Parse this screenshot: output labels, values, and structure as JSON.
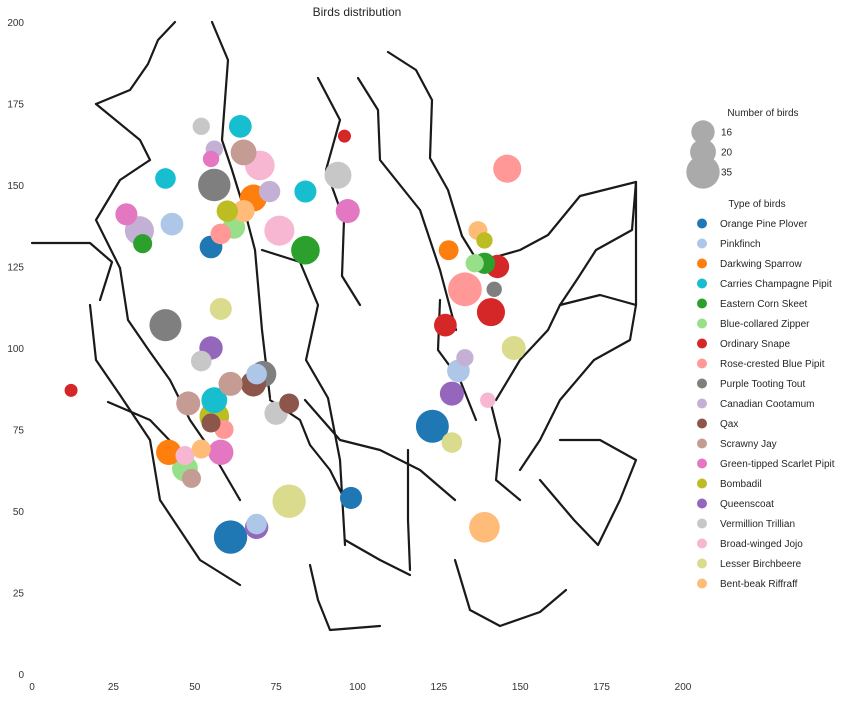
{
  "chart_data": {
    "type": "scatter",
    "title": "Birds distribution",
    "xlabel": "",
    "ylabel": "",
    "xlim": [
      0,
      200
    ],
    "ylim": [
      0,
      200
    ],
    "x_ticks": [
      0,
      25,
      50,
      75,
      100,
      125,
      150,
      175,
      200
    ],
    "y_ticks": [
      0,
      25,
      50,
      75,
      100,
      125,
      150,
      175,
      200
    ],
    "grid": false,
    "background": "map outline",
    "size_legend": {
      "title": "Number of birds",
      "entries": [
        16,
        20,
        35
      ],
      "color": "#aaaaaa"
    },
    "legend": {
      "title": "Type of birds",
      "placement": "right"
    },
    "series": [
      {
        "name": "Orange Pine Plover",
        "color": "#1f77b4",
        "points": [
          {
            "x": 61,
            "y": 42,
            "n": 35
          },
          {
            "x": 123,
            "y": 76,
            "n": 34
          },
          {
            "x": 55,
            "y": 131,
            "n": 15
          },
          {
            "x": 98,
            "y": 54,
            "n": 14
          }
        ]
      },
      {
        "name": "Pinkfinch",
        "color": "#aec7e8",
        "points": [
          {
            "x": 43,
            "y": 138,
            "n": 15
          },
          {
            "x": 131,
            "y": 93,
            "n": 15
          },
          {
            "x": 69,
            "y": 92,
            "n": 12
          },
          {
            "x": 69,
            "y": 46,
            "n": 12
          }
        ]
      },
      {
        "name": "Darkwing Sparrow",
        "color": "#ff7f0e",
        "points": [
          {
            "x": 68,
            "y": 146,
            "n": 22
          },
          {
            "x": 42,
            "y": 68,
            "n": 19
          },
          {
            "x": 128,
            "y": 130,
            "n": 11
          }
        ]
      },
      {
        "name": "Carries Champagne Pipit",
        "color": "#17becf",
        "points": [
          {
            "x": 64,
            "y": 168,
            "n": 15
          },
          {
            "x": 84,
            "y": 148,
            "n": 14
          },
          {
            "x": 41,
            "y": 152,
            "n": 12
          },
          {
            "x": 56,
            "y": 84,
            "n": 20
          }
        ]
      },
      {
        "name": "Eastern Corn Skeet",
        "color": "#2ca02c",
        "points": [
          {
            "x": 84,
            "y": 130,
            "n": 25
          },
          {
            "x": 139,
            "y": 126,
            "n": 13
          },
          {
            "x": 34,
            "y": 132,
            "n": 10
          }
        ]
      },
      {
        "name": "Blue-collared Zipper",
        "color": "#98df8a",
        "points": [
          {
            "x": 47,
            "y": 63,
            "n": 20
          },
          {
            "x": 62,
            "y": 137,
            "n": 15
          },
          {
            "x": 136,
            "y": 126,
            "n": 9
          }
        ]
      },
      {
        "name": "Ordinary Snape",
        "color": "#d62728",
        "points": [
          {
            "x": 141,
            "y": 111,
            "n": 24
          },
          {
            "x": 143,
            "y": 125,
            "n": 16
          },
          {
            "x": 127,
            "y": 107,
            "n": 15
          },
          {
            "x": 96,
            "y": 165,
            "n": 4
          },
          {
            "x": 12,
            "y": 87,
            "n": 4
          }
        ]
      },
      {
        "name": "Rose-crested Blue Pipit",
        "color": "#ff9896",
        "points": [
          {
            "x": 133,
            "y": 118,
            "n": 36
          },
          {
            "x": 146,
            "y": 155,
            "n": 24
          },
          {
            "x": 58,
            "y": 135,
            "n": 12
          },
          {
            "x": 59,
            "y": 75,
            "n": 10
          }
        ]
      },
      {
        "name": "Purple Tooting Tout",
        "color": "#7f7f7f",
        "points": [
          {
            "x": 56,
            "y": 150,
            "n": 33
          },
          {
            "x": 41,
            "y": 107,
            "n": 32
          },
          {
            "x": 71,
            "y": 92,
            "n": 21
          },
          {
            "x": 142,
            "y": 118,
            "n": 6
          }
        ]
      },
      {
        "name": "Canadian Cootamum",
        "color": "#c5b0d5",
        "points": [
          {
            "x": 33,
            "y": 136,
            "n": 26
          },
          {
            "x": 73,
            "y": 148,
            "n": 13
          },
          {
            "x": 133,
            "y": 97,
            "n": 8
          },
          {
            "x": 56,
            "y": 161,
            "n": 8
          }
        ]
      },
      {
        "name": "Qax",
        "color": "#8c564b",
        "points": [
          {
            "x": 68,
            "y": 89,
            "n": 19
          },
          {
            "x": 79,
            "y": 83,
            "n": 11
          },
          {
            "x": 55,
            "y": 77,
            "n": 10
          }
        ]
      },
      {
        "name": "Scrawny Jay",
        "color": "#c49c94",
        "points": [
          {
            "x": 65,
            "y": 160,
            "n": 20
          },
          {
            "x": 61,
            "y": 89,
            "n": 17
          },
          {
            "x": 48,
            "y": 83,
            "n": 17
          },
          {
            "x": 49,
            "y": 60,
            "n": 10
          }
        ]
      },
      {
        "name": "Green-tipped Scarlet Pipit",
        "color": "#e377c2",
        "points": [
          {
            "x": 97,
            "y": 142,
            "n": 17
          },
          {
            "x": 58,
            "y": 68,
            "n": 19
          },
          {
            "x": 29,
            "y": 141,
            "n": 14
          },
          {
            "x": 55,
            "y": 158,
            "n": 7
          }
        ]
      },
      {
        "name": "Bombadil",
        "color": "#bcbd22",
        "points": [
          {
            "x": 56,
            "y": 79,
            "n": 27
          },
          {
            "x": 60,
            "y": 142,
            "n": 13
          },
          {
            "x": 139,
            "y": 133,
            "n": 7
          }
        ]
      },
      {
        "name": "Queenscoat",
        "color": "#9467bd",
        "points": [
          {
            "x": 55,
            "y": 100,
            "n": 16
          },
          {
            "x": 69,
            "y": 45,
            "n": 16
          },
          {
            "x": 129,
            "y": 86,
            "n": 17
          }
        ]
      },
      {
        "name": "Vermillion Trillian",
        "color": "#c7c7c7",
        "points": [
          {
            "x": 94,
            "y": 153,
            "n": 22
          },
          {
            "x": 75,
            "y": 80,
            "n": 16
          },
          {
            "x": 52,
            "y": 96,
            "n": 12
          },
          {
            "x": 52,
            "y": 168,
            "n": 8
          }
        ]
      },
      {
        "name": "Broad-winged Jojo",
        "color": "#f7b6d2",
        "points": [
          {
            "x": 70,
            "y": 156,
            "n": 27
          },
          {
            "x": 76,
            "y": 136,
            "n": 28
          },
          {
            "x": 140,
            "y": 84,
            "n": 6
          },
          {
            "x": 47,
            "y": 67,
            "n": 10
          }
        ]
      },
      {
        "name": "Lesser Birchbeere",
        "color": "#dbdb8d",
        "points": [
          {
            "x": 79,
            "y": 53,
            "n": 35
          },
          {
            "x": 148,
            "y": 100,
            "n": 17
          },
          {
            "x": 58,
            "y": 112,
            "n": 14
          },
          {
            "x": 129,
            "y": 71,
            "n": 12
          }
        ]
      },
      {
        "name": "Bent-beak Riffraff",
        "color": "#ffbb78",
        "points": [
          {
            "x": 139,
            "y": 45,
            "n": 29
          },
          {
            "x": 65,
            "y": 142,
            "n": 14
          },
          {
            "x": 137,
            "y": 136,
            "n": 10
          },
          {
            "x": 52,
            "y": 69,
            "n": 10
          }
        ]
      }
    ]
  }
}
